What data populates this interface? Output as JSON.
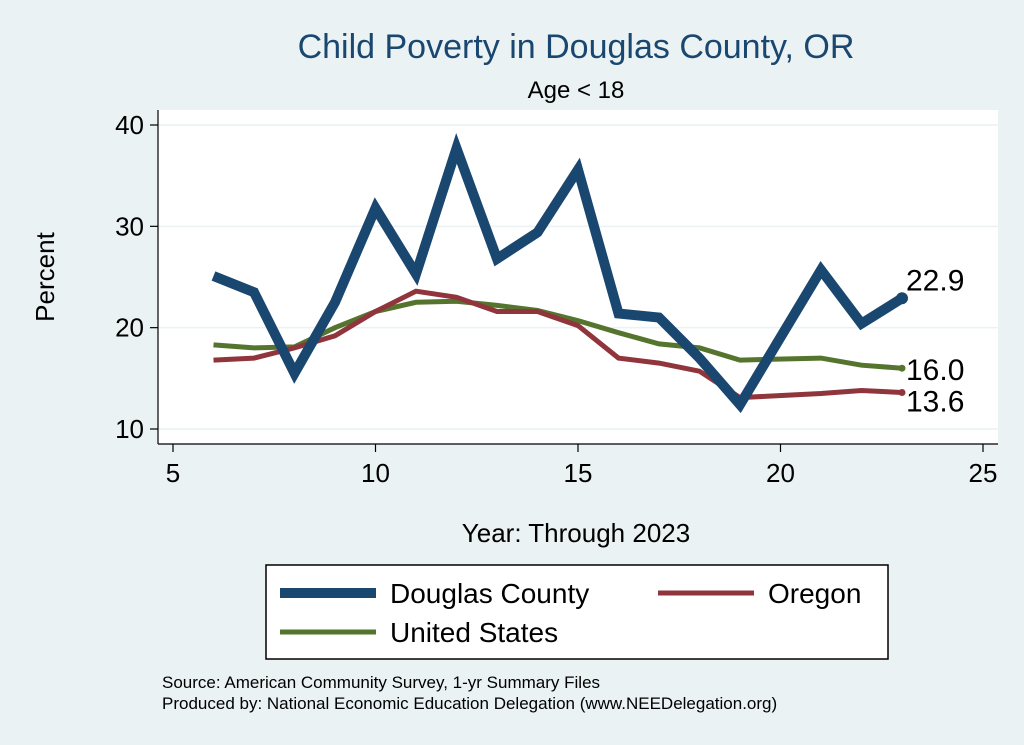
{
  "chart_data": {
    "type": "line",
    "title": "Child Poverty in Douglas County, OR",
    "subtitle": "Age < 18",
    "xlabel": "Year: Through 2023",
    "ylabel": "Percent",
    "xlim": [
      5,
      25
    ],
    "ylim": [
      10,
      40
    ],
    "xticks": [
      5,
      10,
      15,
      20,
      25
    ],
    "yticks": [
      10,
      20,
      30,
      40
    ],
    "grid": true,
    "legend_placement": "bottom",
    "series": [
      {
        "name": "Douglas County",
        "color": "#1a476f",
        "x": [
          6,
          7,
          8,
          9,
          10,
          11,
          12,
          13,
          14,
          15,
          16,
          17,
          18,
          19,
          21,
          22,
          23
        ],
        "y": [
          25.1,
          23.5,
          15.5,
          22.5,
          31.8,
          25.3,
          37.7,
          26.8,
          29.4,
          35.6,
          21.4,
          21.0,
          17.0,
          12.4,
          25.7,
          20.4,
          22.9
        ],
        "end_label": "22.9"
      },
      {
        "name": "Oregon",
        "color": "#90353b",
        "x": [
          6,
          7,
          8,
          9,
          10,
          11,
          12,
          13,
          14,
          15,
          16,
          17,
          18,
          19,
          21,
          22,
          23
        ],
        "y": [
          16.8,
          17.0,
          18.0,
          19.2,
          21.6,
          23.6,
          23.0,
          21.6,
          21.6,
          20.2,
          17.0,
          16.5,
          15.7,
          13.1,
          13.5,
          13.8,
          13.6
        ],
        "end_label": "13.6"
      },
      {
        "name": "United States",
        "color": "#55752f",
        "x": [
          6,
          7,
          8,
          9,
          10,
          11,
          12,
          13,
          14,
          15,
          16,
          17,
          18,
          19,
          21,
          22,
          23
        ],
        "y": [
          18.3,
          18.0,
          18.1,
          20.0,
          21.6,
          22.5,
          22.6,
          22.2,
          21.7,
          20.7,
          19.5,
          18.4,
          18.0,
          16.8,
          17.0,
          16.3,
          16.0
        ],
        "end_label": "16.0"
      }
    ]
  },
  "notes": {
    "source": "Source: American Community Survey, 1-yr Summary Files",
    "produced": "Produced by: National Economic Education Delegation (www.NEEDelegation.org)"
  }
}
